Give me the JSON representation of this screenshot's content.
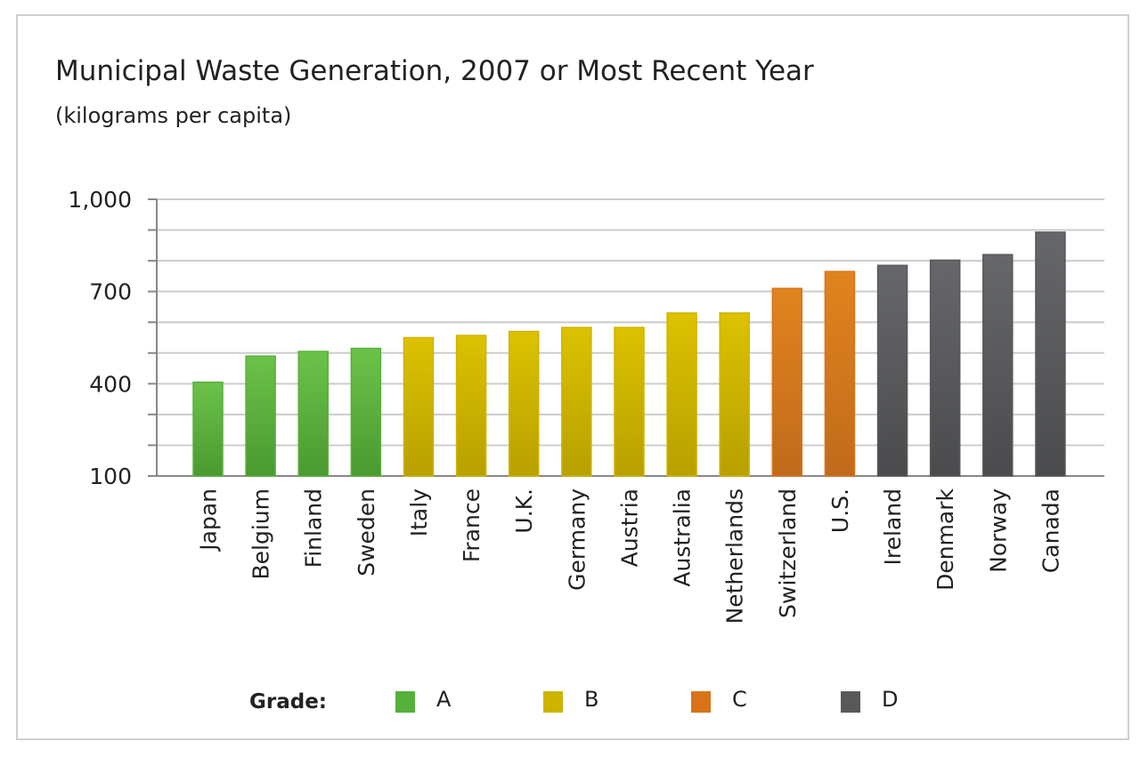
{
  "chart_data": {
    "type": "bar",
    "title": "Municipal Waste Generation, 2007 or Most Recent Year",
    "subtitle": "(kilograms per capita)",
    "xlabel": "",
    "ylabel": "",
    "ylim": [
      100,
      1000
    ],
    "yticks": [
      100,
      400,
      700,
      1000
    ],
    "ytick_labels": [
      "100",
      "400",
      "700",
      "1,000"
    ],
    "grid": true,
    "categories": [
      "Japan",
      "Belgium",
      "Finland",
      "Sweden",
      "Italy",
      "France",
      "U.K.",
      "Germany",
      "Austria",
      "Australia",
      "Netherlands",
      "Switzerland",
      "U.S.",
      "Ireland",
      "Denmark",
      "Norway",
      "Canada"
    ],
    "values": [
      405,
      490,
      505,
      515,
      550,
      557,
      570,
      583,
      583,
      630,
      630,
      710,
      765,
      785,
      802,
      820,
      893
    ],
    "grades": [
      "A",
      "A",
      "A",
      "A",
      "B",
      "B",
      "B",
      "B",
      "B",
      "B",
      "B",
      "C",
      "C",
      "D",
      "D",
      "D",
      "D"
    ],
    "legend": {
      "title": "Grade:",
      "placement": "bottom",
      "items": [
        {
          "label": "A",
          "color": "#56b03a"
        },
        {
          "label": "B",
          "color": "#cdb400"
        },
        {
          "label": "C",
          "color": "#d9731a"
        },
        {
          "label": "D",
          "color": "#58595b"
        }
      ]
    }
  }
}
